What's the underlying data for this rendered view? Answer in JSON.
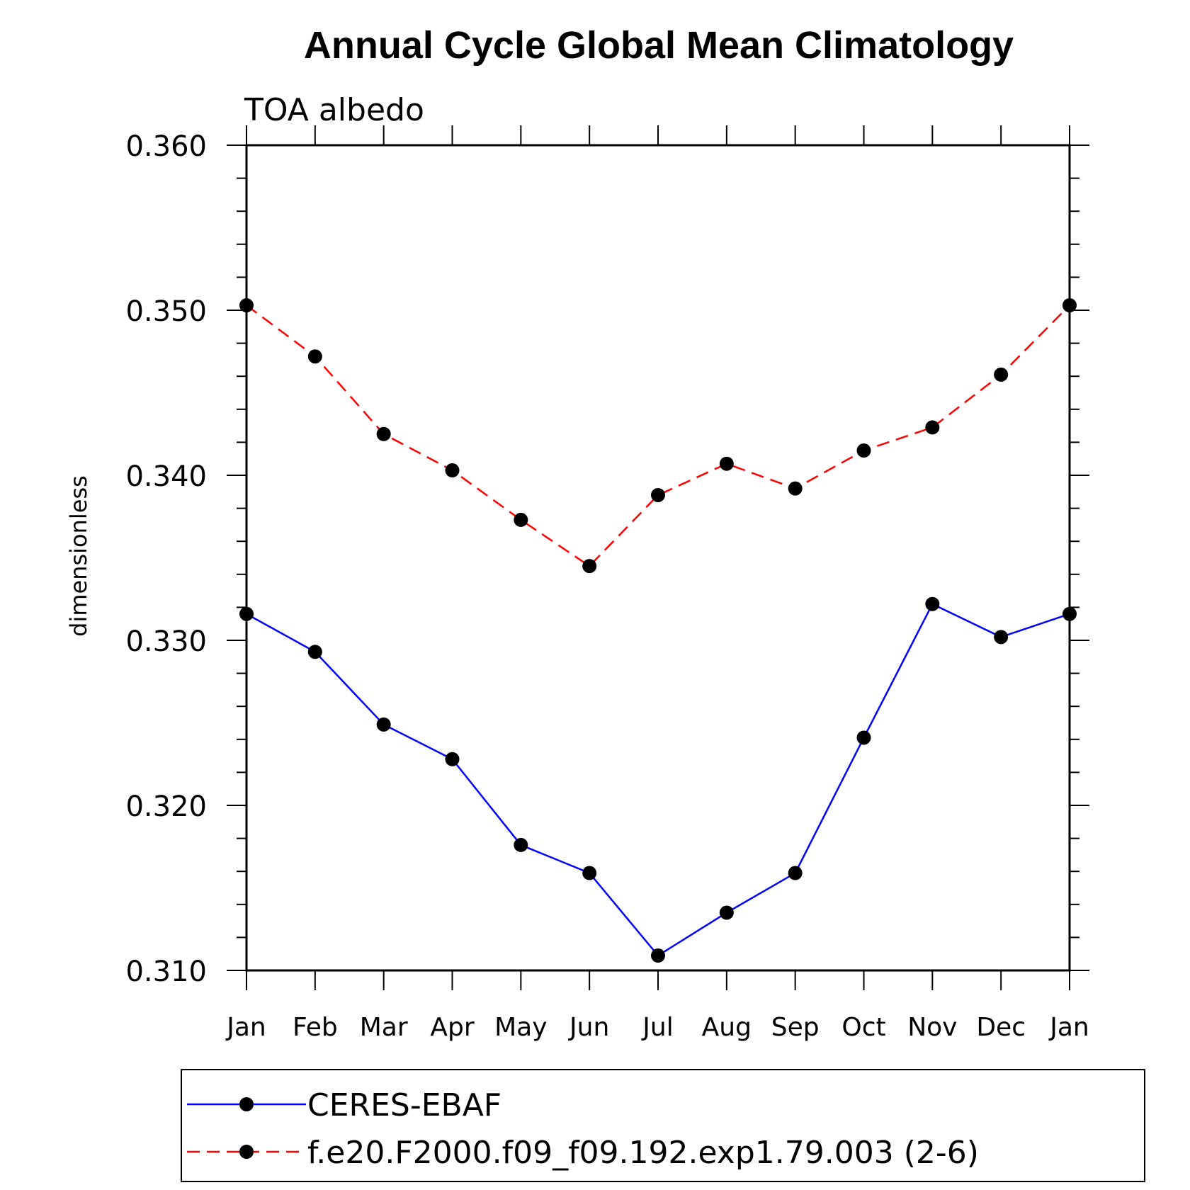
{
  "chart_data": {
    "type": "line",
    "title": "Annual Cycle Global Mean Climatology",
    "subtitle": "TOA albedo",
    "xlabel": "",
    "ylabel": "dimensionless",
    "categories": [
      "Jan",
      "Feb",
      "Mar",
      "Apr",
      "May",
      "Jun",
      "Jul",
      "Aug",
      "Sep",
      "Oct",
      "Nov",
      "Dec",
      "Jan"
    ],
    "ylim": [
      0.31,
      0.36
    ],
    "yticks": [
      "0.310",
      "0.320",
      "0.330",
      "0.340",
      "0.350",
      "0.360"
    ],
    "grid": false,
    "legend_position": "bottom",
    "series": [
      {
        "name": "CERES-EBAF",
        "color": "#0000ff",
        "line_style": "solid",
        "marker": "filled-circle",
        "values": [
          0.3316,
          0.3293,
          0.3249,
          0.3228,
          0.3176,
          0.3159,
          0.3109,
          0.3135,
          0.3159,
          0.3241,
          0.3322,
          0.3302,
          0.3316
        ]
      },
      {
        "name": "f.e20.F2000.f09_f09.192.exp1.79.003 (2-6)",
        "color": "#ff0000",
        "line_style": "dashed",
        "marker": "filled-circle",
        "values": [
          0.3503,
          0.3472,
          0.3425,
          0.3403,
          0.3373,
          0.3345,
          0.3388,
          0.3407,
          0.3392,
          0.3415,
          0.3429,
          0.3461,
          0.3503
        ]
      }
    ]
  }
}
